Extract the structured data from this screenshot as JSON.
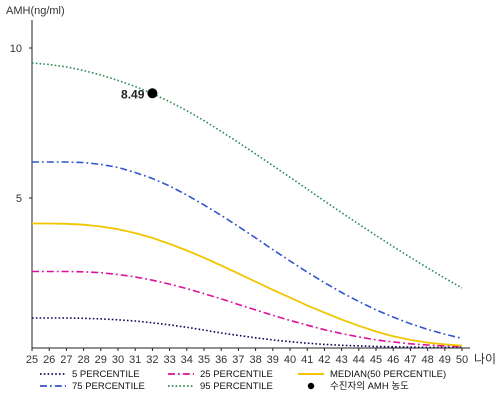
{
  "chart_data": {
    "type": "line",
    "title": "",
    "ylabel": "AMH(ng/ml)",
    "xlabel": "나이",
    "x": [
      25,
      26,
      27,
      28,
      29,
      30,
      31,
      32,
      33,
      34,
      35,
      36,
      37,
      38,
      39,
      40,
      41,
      42,
      43,
      44,
      45,
      46,
      47,
      48,
      49,
      50
    ],
    "xlim": [
      25,
      50
    ],
    "ylim": [
      0,
      11
    ],
    "yticks": [
      5,
      10
    ],
    "grid": false,
    "series": [
      {
        "name": "5 PERCENTILE",
        "color": "#0a0a5a",
        "dash": "dotted",
        "values": [
          1.0,
          1.0,
          1.0,
          0.99,
          0.97,
          0.94,
          0.9,
          0.84,
          0.77,
          0.69,
          0.6,
          0.5,
          0.42,
          0.34,
          0.27,
          0.21,
          0.16,
          0.12,
          0.09,
          0.07,
          0.05,
          0.04,
          0.03,
          0.02,
          0.02,
          0.02
        ]
      },
      {
        "name": "75 PERCENTILE",
        "color": "#3355cc",
        "dash": "dashdot",
        "values": [
          6.2,
          6.2,
          6.2,
          6.18,
          6.12,
          6.02,
          5.85,
          5.65,
          5.4,
          5.1,
          4.77,
          4.42,
          4.05,
          3.67,
          3.28,
          2.9,
          2.53,
          2.18,
          1.85,
          1.55,
          1.27,
          1.03,
          0.81,
          0.62,
          0.46,
          0.32
        ]
      },
      {
        "name": "25 PERCENTILE",
        "color": "#dd1199",
        "dash": "dashdot",
        "values": [
          2.55,
          2.55,
          2.55,
          2.54,
          2.51,
          2.45,
          2.37,
          2.26,
          2.13,
          1.98,
          1.81,
          1.64,
          1.45,
          1.27,
          1.09,
          0.92,
          0.76,
          0.61,
          0.48,
          0.37,
          0.27,
          0.2,
          0.14,
          0.1,
          0.07,
          0.05
        ]
      },
      {
        "name": "95 PERCENTILE",
        "color": "#2e8b57",
        "dash": "dotted",
        "values": [
          9.5,
          9.45,
          9.37,
          9.25,
          9.1,
          8.92,
          8.72,
          8.48,
          8.21,
          7.91,
          7.58,
          7.22,
          6.85,
          6.47,
          6.08,
          5.69,
          5.3,
          4.9,
          4.51,
          4.13,
          3.75,
          3.38,
          3.02,
          2.67,
          2.33,
          2.0
        ]
      },
      {
        "name": "MEDIAN(50 PERCENTILE)",
        "color": "#f2c500",
        "dash": "solid",
        "values": [
          4.15,
          4.15,
          4.14,
          4.11,
          4.05,
          3.96,
          3.83,
          3.67,
          3.47,
          3.25,
          3.01,
          2.75,
          2.48,
          2.21,
          1.94,
          1.68,
          1.42,
          1.18,
          0.95,
          0.74,
          0.55,
          0.39,
          0.27,
          0.18,
          0.12,
          0.08
        ]
      }
    ],
    "marker": {
      "label": "수진자의 AMH 농도",
      "x": 32,
      "y": 8.49,
      "text": "8.49"
    },
    "legend": {
      "placement": "bottom"
    }
  }
}
